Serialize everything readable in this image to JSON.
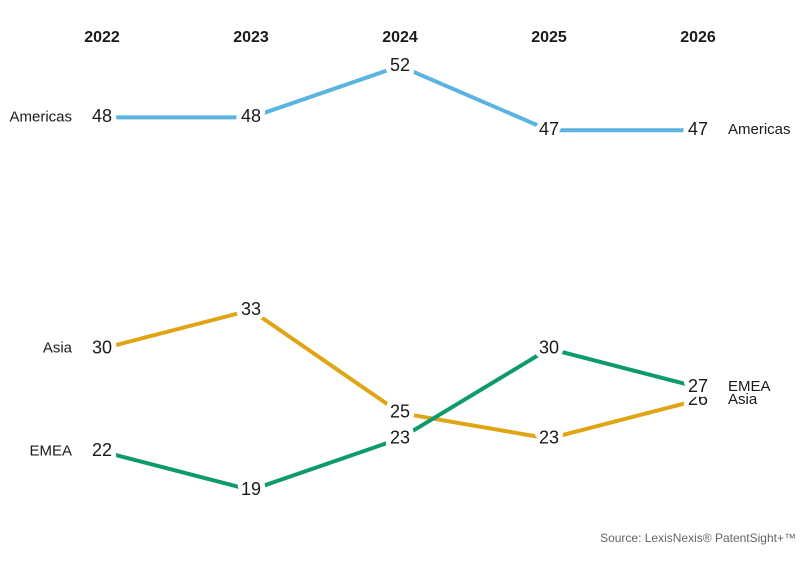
{
  "chart_data": {
    "type": "line",
    "categories": [
      "2022",
      "2023",
      "2024",
      "2025",
      "2026"
    ],
    "series": [
      {
        "name": "Americas",
        "color": "#5ab4e0",
        "values": [
          48,
          48,
          52,
          47,
          47
        ]
      },
      {
        "name": "Asia",
        "color": "#e0a515",
        "values": [
          30,
          33,
          25,
          23,
          26
        ]
      },
      {
        "name": "EMEA",
        "color": "#0e9a6e",
        "values": [
          22,
          19,
          23,
          30,
          27
        ]
      }
    ],
    "source": "Source: LexisNexis® PatentSight+™"
  }
}
